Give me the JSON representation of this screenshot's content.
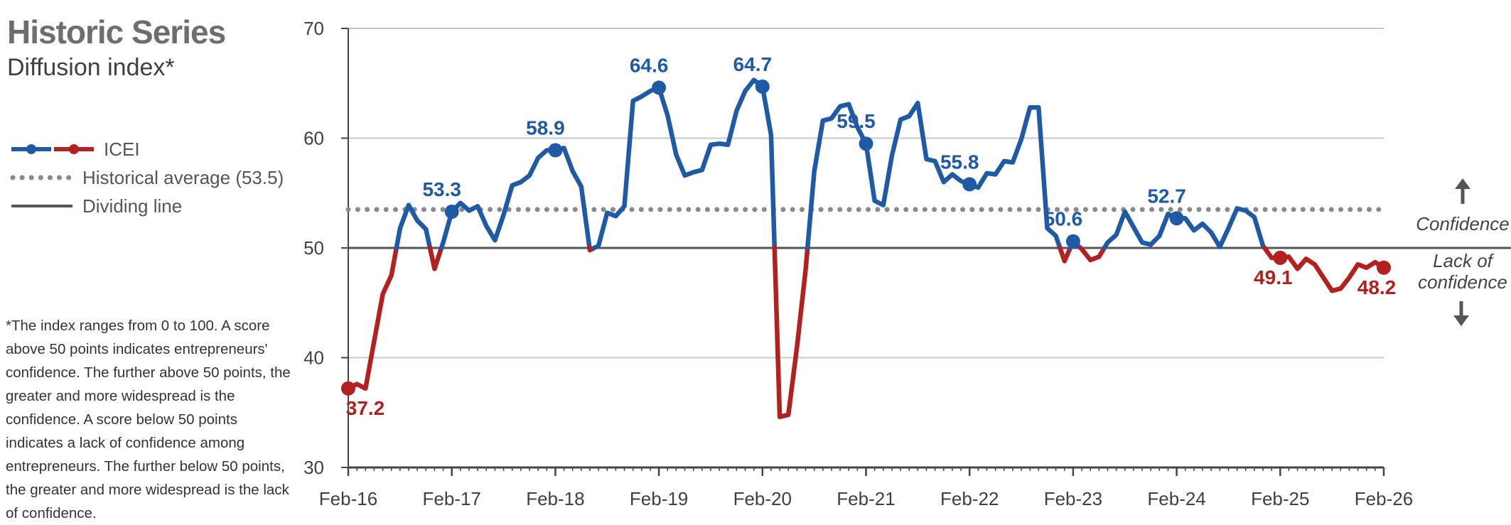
{
  "header": {
    "title": "Historic Series",
    "subtitle": "Diffusion index*"
  },
  "legend": {
    "series": "ICEI",
    "average": "Historical average (53.5)",
    "dividing": "Dividing line"
  },
  "note": "*The index ranges from 0 to 100. A score above 50 points indicates entrepreneurs' confidence. The further above 50 points, the greater and more widespread is the confidence. A score below 50 points indicates a lack of confidence among entrepreneurs. The further below 50 points, the greater and more widespread is the lack of confidence.",
  "side_labels": {
    "confidence": "Confidence",
    "lack_line1": "Lack of",
    "lack_line2": "confidence",
    "up_arrow": "up-arrow-icon",
    "down_arrow": "down-arrow-icon"
  },
  "colors": {
    "above": "#1f5aa6",
    "below": "#b41f1f",
    "average": "#8a8a8a",
    "dividing": "#555555",
    "grid": "#c8c8c8"
  },
  "chart_data": {
    "type": "line",
    "title": "Historic Series",
    "subtitle": "Diffusion index*",
    "ylim": [
      30,
      70
    ],
    "yticks": [
      30,
      40,
      50,
      60,
      70
    ],
    "x_tick_labels": [
      "Feb-16",
      "Feb-17",
      "Feb-18",
      "Feb-19",
      "Feb-20",
      "Feb-21",
      "Feb-22",
      "Feb-23",
      "Feb-24",
      "Feb-25",
      "Feb-26"
    ],
    "historical_average": 53.5,
    "dividing_line": 50,
    "grid": true,
    "series": [
      {
        "name": "ICEI",
        "values": [
          37.2,
          37.6,
          37.2,
          41.5,
          45.8,
          47.5,
          51.8,
          53.9,
          52.5,
          51.7,
          48.1,
          50.5,
          53.3,
          54.1,
          53.4,
          53.8,
          52,
          50.7,
          53,
          55.7,
          56,
          56.6,
          58.2,
          58.9,
          58.9,
          59.1,
          57,
          55.6,
          49.8,
          50.2,
          53.2,
          52.9,
          53.8,
          63.4,
          63.8,
          64.3,
          64.6,
          62.1,
          58.5,
          56.6,
          56.9,
          57.1,
          59.4,
          59.5,
          59.4,
          62.5,
          64.3,
          65.3,
          64.7,
          60.3,
          34.6,
          34.8,
          41,
          48,
          57,
          61.6,
          61.8,
          62.9,
          63.1,
          61,
          59.5,
          54.3,
          53.9,
          58.4,
          61.7,
          62,
          63.2,
          58.1,
          57.9,
          56,
          56.7,
          56.1,
          55.8,
          55.5,
          56.8,
          56.7,
          57.9,
          57.8,
          59.9,
          62.8,
          62.8,
          51.8,
          51.1,
          48.8,
          50.6,
          49.9,
          48.9,
          49.2,
          50.5,
          51.2,
          53.3,
          51.9,
          50.5,
          50.3,
          51.1,
          53.1,
          52.7,
          52.7,
          51.6,
          52.2,
          51.4,
          50.1,
          51.8,
          53.6,
          53.4,
          52.8,
          50.2,
          49.1,
          49.1,
          49.2,
          48.1,
          49,
          48.5,
          47.3,
          46.1,
          46.3,
          47.3,
          48.5,
          48.2,
          48.7,
          48.2
        ],
        "labels": [
          {
            "index": 0,
            "value": "37.2"
          },
          {
            "index": 12,
            "value": "53.3"
          },
          {
            "index": 24,
            "value": "58.9"
          },
          {
            "index": 36,
            "value": "64.6"
          },
          {
            "index": 48,
            "value": "64.7"
          },
          {
            "index": 60,
            "value": "59.5"
          },
          {
            "index": 72,
            "value": "55.8"
          },
          {
            "index": 84,
            "value": "50.6"
          },
          {
            "index": 96,
            "value": "52.7"
          },
          {
            "index": 108,
            "value": "49.1"
          },
          {
            "index": 120,
            "value": "48.2"
          }
        ]
      }
    ]
  }
}
